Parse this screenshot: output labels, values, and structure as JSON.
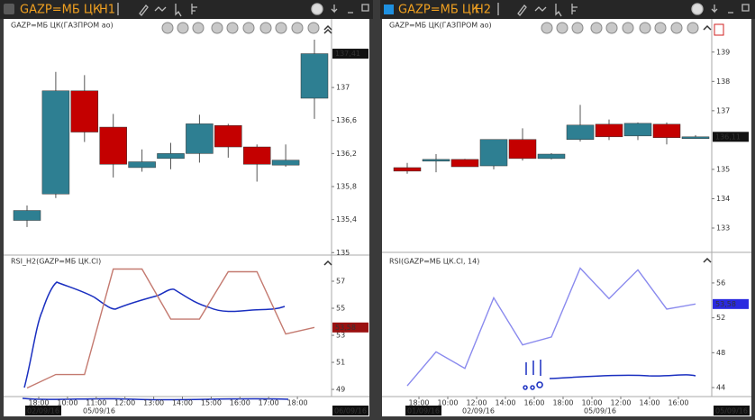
{
  "windows": [
    {
      "symbol": "GAZP=МБ ЦК",
      "timeframe": "H1",
      "price_chart": {
        "type": "candlestick",
        "title": "GAZP=МБ ЦК(ГАЗПРОМ ао)",
        "ylim": [
          134.97,
          137.82
        ],
        "yticks": [
          135,
          {
            "value": 135.4,
            "label": "135,4"
          },
          {
            "value": 135.8,
            "label": "135,8"
          },
          {
            "value": 136.2,
            "label": "136,2"
          },
          {
            "value": 136.6,
            "label": "136,6"
          },
          137
        ],
        "last": {
          "value": 137.41,
          "label": "137,41"
        },
        "last_color": "#111111",
        "up_color": "#2e7f92",
        "down_color": "#c40000",
        "candles": [
          {
            "open": 135.39,
            "high": 135.57,
            "low": 135.31,
            "close": 135.51
          },
          {
            "open": 135.71,
            "high": 137.19,
            "low": 135.66,
            "close": 136.96
          },
          {
            "open": 136.96,
            "high": 137.15,
            "low": 136.34,
            "close": 136.46
          },
          {
            "open": 136.52,
            "high": 136.68,
            "low": 135.91,
            "close": 136.07
          },
          {
            "open": 136.03,
            "high": 136.25,
            "low": 135.98,
            "close": 136.1
          },
          {
            "open": 136.14,
            "high": 136.33,
            "low": 136.01,
            "close": 136.2
          },
          {
            "open": 136.2,
            "high": 136.67,
            "low": 136.09,
            "close": 136.56
          },
          {
            "open": 136.54,
            "high": 136.56,
            "low": 136.15,
            "close": 136.28
          },
          {
            "open": 136.28,
            "high": 136.31,
            "low": 135.86,
            "close": 136.07
          },
          {
            "open": 136.06,
            "high": 136.31,
            "low": 136.04,
            "close": 136.12
          },
          {
            "open": 136.87,
            "high": 137.58,
            "low": 136.62,
            "close": 137.41
          }
        ]
      },
      "rsi_chart": {
        "type": "line",
        "title": "RSI_H2(GAZP=МБ ЦК.Cl)",
        "color": "#c47a70",
        "ylim": [
          48.47,
          58.8
        ],
        "yticks": [
          49,
          51,
          53,
          55,
          57
        ],
        "values": [
          49.1,
          50.1,
          50.1,
          57.9,
          57.9,
          54.2,
          54.2,
          57.7,
          57.7,
          53.1,
          53.58
        ],
        "last": {
          "value": 53.58,
          "label": "53,58"
        },
        "last_color": "#9a1010"
      },
      "time_labels": [
        "18:00",
        "10:00",
        "11:00",
        "12:00",
        "13:00",
        "14:00",
        "15:00",
        "16:00",
        "17:00",
        "18:00"
      ],
      "dates": [
        "02/09/16",
        "05/09/16",
        "06/09/16"
      ]
    },
    {
      "symbol": "GAZP=МБ ЦК",
      "timeframe": "H2",
      "price_chart": {
        "type": "candlestick",
        "title": "GAZP=МБ ЦК(ГАЗПРОМ ао)",
        "ylim": [
          132.17,
          140.1
        ],
        "yticks": [
          133,
          134,
          135,
          137,
          138,
          139
        ],
        "last": {
          "value": 136.11,
          "label": "136,11"
        },
        "last_color": "#111111",
        "up_color": "#2e7f92",
        "down_color": "#c40000",
        "candles": [
          {
            "open": 135.06,
            "high": 135.22,
            "low": 134.85,
            "close": 134.94
          },
          {
            "open": 135.28,
            "high": 135.52,
            "low": 134.9,
            "close": 135.34
          },
          {
            "open": 135.34,
            "high": 135.36,
            "low": 135.09,
            "close": 135.09
          },
          {
            "open": 135.12,
            "high": 136.02,
            "low": 135.0,
            "close": 136.02
          },
          {
            "open": 136.02,
            "high": 136.4,
            "low": 135.3,
            "close": 135.37
          },
          {
            "open": 135.37,
            "high": 135.55,
            "low": 135.34,
            "close": 135.52
          },
          {
            "open": 136.02,
            "high": 137.2,
            "low": 135.95,
            "close": 136.51
          },
          {
            "open": 136.54,
            "high": 136.7,
            "low": 136.0,
            "close": 136.11
          },
          {
            "open": 136.14,
            "high": 136.6,
            "low": 136.0,
            "close": 136.57
          },
          {
            "open": 136.54,
            "high": 136.6,
            "low": 135.85,
            "close": 136.08
          },
          {
            "open": 136.05,
            "high": 136.17,
            "low": 136.05,
            "close": 136.11
          }
        ]
      },
      "rsi_chart": {
        "type": "line",
        "title": "RSI(GAZP=МБ ЦК.Cl, 14)",
        "color": "#8a8aee",
        "ylim": [
          42.97,
          59.3
        ],
        "yticks": [
          44,
          48,
          52,
          56
        ],
        "values": [
          44.2,
          48.1,
          46.2,
          54.3,
          48.9,
          49.8,
          57.7,
          54.2,
          57.5,
          53.0,
          53.58
        ],
        "last": {
          "value": 53.58,
          "label": "53,58"
        },
        "last_color": "#2a2ae0"
      },
      "time_labels": [
        "18:00",
        "10:00",
        "12:00",
        "14:00",
        "16:00",
        "18:00",
        "10:00",
        "12:00",
        "14:00",
        "16:00"
      ],
      "dates": [
        "01/09/16",
        "02/09/16",
        "05/09/16",
        "05/09/16"
      ]
    }
  ]
}
